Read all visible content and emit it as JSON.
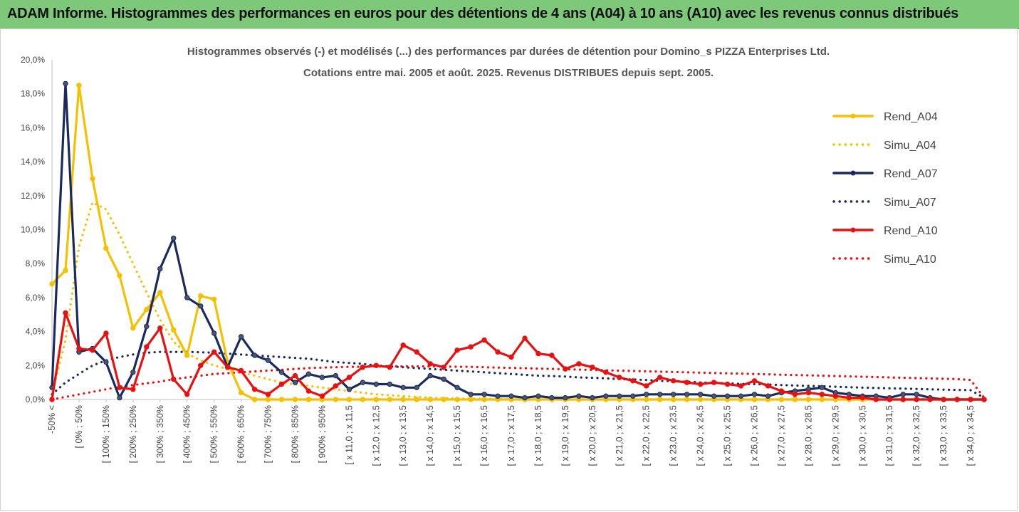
{
  "page": {
    "title": "ADAM Informe. Histogrammes des performances en euros pour des détentions de 4 ans (A04) à 10 ans (A10) avec les revenus connus distribués"
  },
  "chart_data": {
    "type": "line",
    "subtitle_line1": "Histogrammes observés (-) et modélisés (...) des performances par durées de détention pour Domino_s PIZZA Enterprises Ltd.",
    "subtitle_line2": "Cotations entre mai. 2005 et août. 2025. Revenus DISTRIBUES depuis sept. 2005.",
    "ylim": [
      0,
      20
    ],
    "y_ticks": [
      "0,0%",
      "2,0%",
      "4,0%",
      "6,0%",
      "8,0%",
      "10,0%",
      "12,0%",
      "14,0%",
      "16,0%",
      "18,0%",
      "20,0%"
    ],
    "grid": false,
    "legend_position": "right",
    "x_tick_labels": [
      "-50% <",
      "[ 0% ; 50%",
      "[ 100% ; 150%",
      "[ 200% ; 250%",
      "[ 300% ; 350%",
      "[ 400% ; 450%",
      "[ 500% ; 550%",
      "[ 600% ; 650%",
      "[ 700% ; 750%",
      "[ 800% ; 850%",
      "[ 900% ; 950%",
      "[ x 11,0 ; x 11,5",
      "[ x 12,0 ; x 12,5",
      "[ x 13,0 ; x 13,5",
      "[ x 14,0 ; x 14,5",
      "[ x 15,0 ; x 15,5",
      "[ x 16,0 ; x 16,5",
      "[ x 17,0 ; x 17,5",
      "[ x 18,0 ; x 18,5",
      "[ x 19,0 ; x 19,5",
      "[ x 20,0 ; x 20,5",
      "[ x 21,0 ; x 21,5",
      "[ x 22,0 ; x 22,5",
      "[ x 23,0 ; x 23,5",
      "[ x 24,0 ; x 24,5",
      "[ x 25,0 ; x 25,5",
      "[ x 26,0 ; x 26,5",
      "[ x 27,0 ; x 27,5",
      "[ x 28,0 ; x 28,5",
      "[ x 29,0 ; x 29,5",
      "[ x 30,0 ; x 30,5",
      "[ x 31,0 ; x 31,5",
      "[ x 32,0 ; x 32,5",
      "[ x 33,0 ; x 33,5",
      "[ x 34,0 ; x 34,5"
    ],
    "series": [
      {
        "name": "Rend_A04",
        "color": "#f5c000",
        "style": "solid",
        "markers": true,
        "values": [
          6.8,
          7.6,
          18.5,
          13.0,
          8.9,
          7.3,
          4.2,
          5.3,
          6.3,
          4.1,
          2.6,
          6.1,
          5.9,
          2.2,
          0.4,
          0.0,
          0.0,
          0.0,
          0.0,
          0.0,
          0.0,
          0.0,
          0.0,
          0.0,
          0.0,
          0.0,
          0.0,
          0.0,
          0.0,
          0.0,
          0.0,
          0.0,
          0.0,
          0.0,
          0.0,
          0.0,
          0.0,
          0.0,
          0.0,
          0.0,
          0.0,
          0.0,
          0.0,
          0.0,
          0.0,
          0.0,
          0.0,
          0.0,
          0.0,
          0.0,
          0.0,
          0.0,
          0.0,
          0.0,
          0.0,
          0.0,
          0.0,
          0.0,
          0.0,
          0.0,
          0.0,
          0.0,
          0.0,
          0.0,
          0.0,
          0.0,
          0.0,
          0.0,
          0.0,
          0.0
        ]
      },
      {
        "name": "Simu_A04",
        "color": "#f5c000",
        "style": "dotted",
        "markers": false,
        "values": [
          0.3,
          3.5,
          9.0,
          11.6,
          11.2,
          9.7,
          8.0,
          6.3,
          4.7,
          3.4,
          2.7,
          2.3,
          2.0,
          1.8,
          1.6,
          1.4,
          1.2,
          1.0,
          0.9,
          0.8,
          0.7,
          0.6,
          0.5,
          0.4,
          0.3,
          0.25,
          0.2,
          0.15,
          0.1,
          0.08,
          0.06,
          0.05,
          0.04,
          0.03,
          0.02,
          0.02,
          0.01,
          0.01,
          0.0,
          0.0,
          0.0,
          0.0,
          0.0,
          0.0,
          0.0,
          0.0,
          0.0,
          0.0,
          0.0,
          0.0,
          0.0,
          0.0,
          0.0,
          0.0,
          0.0,
          0.0,
          0.0,
          0.0,
          0.0,
          0.0,
          0.0,
          0.0,
          0.0,
          0.0,
          0.0,
          0.0,
          0.0,
          0.0,
          0.0,
          0.0
        ]
      },
      {
        "name": "Rend_A07",
        "color": "#1a2a5e",
        "style": "solid",
        "markers": true,
        "values": [
          0.7,
          18.6,
          2.8,
          3.0,
          2.2,
          0.1,
          1.6,
          4.3,
          7.7,
          9.5,
          6.0,
          5.5,
          3.9,
          1.9,
          3.7,
          2.6,
          2.3,
          1.6,
          1.0,
          1.5,
          1.3,
          1.4,
          0.6,
          1.0,
          0.9,
          0.9,
          0.7,
          0.7,
          1.4,
          1.2,
          0.7,
          0.3,
          0.3,
          0.2,
          0.2,
          0.1,
          0.2,
          0.1,
          0.1,
          0.2,
          0.1,
          0.2,
          0.2,
          0.2,
          0.3,
          0.3,
          0.3,
          0.3,
          0.3,
          0.2,
          0.2,
          0.2,
          0.3,
          0.2,
          0.4,
          0.5,
          0.6,
          0.7,
          0.4,
          0.3,
          0.2,
          0.2,
          0.1,
          0.3,
          0.3,
          0.1,
          0.0,
          0.0,
          0.0,
          0.0
        ]
      },
      {
        "name": "Simu_A07",
        "color": "#1a2a5e",
        "style": "dotted",
        "markers": false,
        "values": [
          0.3,
          1.0,
          1.5,
          2.0,
          2.3,
          2.5,
          2.65,
          2.75,
          2.8,
          2.8,
          2.8,
          2.78,
          2.75,
          2.7,
          2.65,
          2.6,
          2.55,
          2.5,
          2.45,
          2.4,
          2.3,
          2.2,
          2.15,
          2.1,
          2.0,
          1.95,
          1.9,
          1.85,
          1.8,
          1.75,
          1.7,
          1.65,
          1.6,
          1.55,
          1.5,
          1.45,
          1.4,
          1.38,
          1.35,
          1.3,
          1.28,
          1.25,
          1.2,
          1.18,
          1.15,
          1.1,
          1.08,
          1.05,
          1.0,
          0.98,
          0.95,
          0.92,
          0.9,
          0.88,
          0.85,
          0.82,
          0.8,
          0.78,
          0.75,
          0.72,
          0.7,
          0.68,
          0.66,
          0.64,
          0.62,
          0.6,
          0.58,
          0.56,
          0.55,
          0.1
        ]
      },
      {
        "name": "Rend_A10",
        "color": "#e81010",
        "style": "solid",
        "markers": true,
        "values": [
          0.0,
          5.1,
          3.0,
          2.9,
          3.9,
          0.7,
          0.6,
          3.1,
          4.2,
          1.2,
          0.3,
          2.0,
          2.8,
          1.9,
          1.7,
          0.6,
          0.3,
          0.9,
          1.4,
          0.5,
          0.2,
          0.8,
          1.3,
          1.9,
          2.0,
          1.9,
          3.2,
          2.8,
          2.1,
          1.9,
          2.9,
          3.1,
          3.5,
          2.8,
          2.5,
          3.6,
          2.7,
          2.6,
          1.8,
          2.1,
          1.9,
          1.6,
          1.3,
          1.1,
          0.8,
          1.3,
          1.1,
          1.0,
          0.9,
          1.0,
          0.9,
          0.8,
          1.1,
          0.8,
          0.5,
          0.3,
          0.4,
          0.3,
          0.2,
          0.1,
          0.1,
          0.0,
          0.0,
          0.0,
          0.0,
          0.0,
          0.0,
          0.0,
          0.0,
          0.0
        ]
      },
      {
        "name": "Simu_A10",
        "color": "#e81010",
        "style": "dotted",
        "markers": false,
        "values": [
          0.0,
          0.15,
          0.3,
          0.45,
          0.6,
          0.75,
          0.85,
          0.95,
          1.05,
          1.2,
          1.3,
          1.4,
          1.5,
          1.55,
          1.6,
          1.65,
          1.7,
          1.75,
          1.8,
          1.85,
          1.88,
          1.9,
          1.92,
          1.93,
          1.94,
          1.95,
          1.95,
          1.95,
          1.95,
          1.94,
          1.93,
          1.92,
          1.9,
          1.88,
          1.86,
          1.84,
          1.82,
          1.8,
          1.78,
          1.76,
          1.74,
          1.72,
          1.7,
          1.68,
          1.66,
          1.64,
          1.62,
          1.6,
          1.58,
          1.56,
          1.54,
          1.52,
          1.5,
          1.48,
          1.46,
          1.44,
          1.42,
          1.4,
          1.38,
          1.36,
          1.34,
          1.32,
          1.3,
          1.28,
          1.26,
          1.24,
          1.22,
          1.2,
          1.15,
          0.1
        ]
      }
    ]
  }
}
